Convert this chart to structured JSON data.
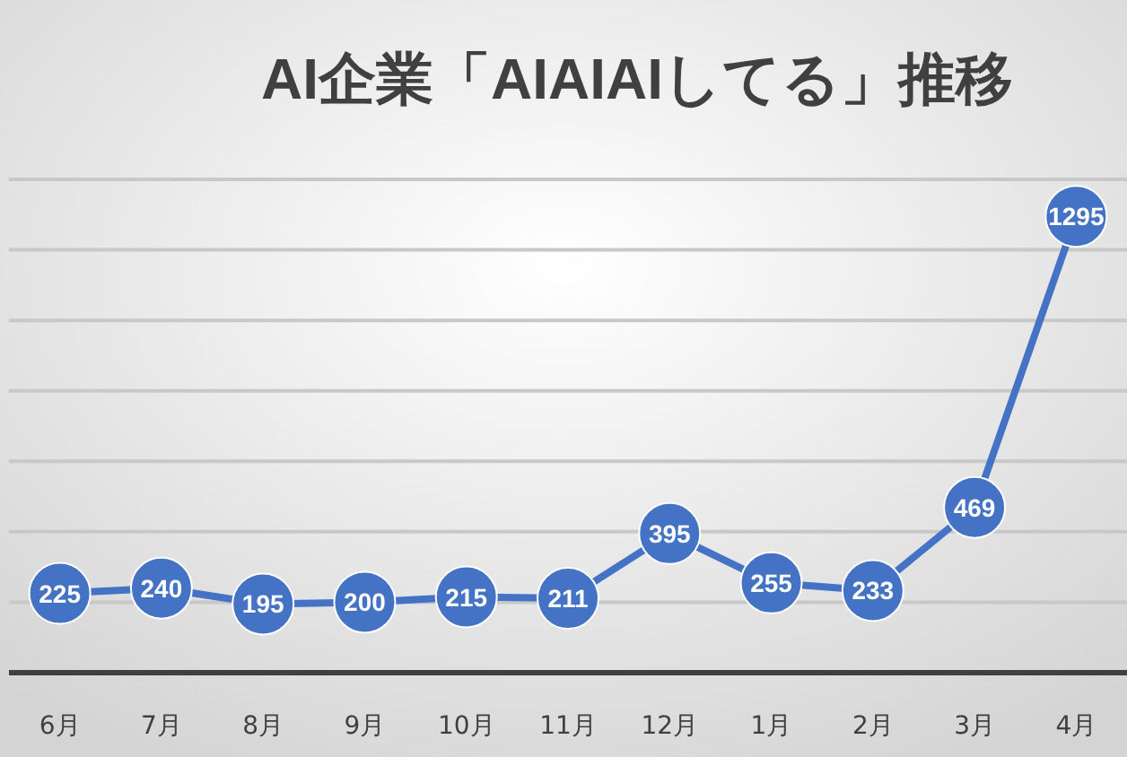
{
  "chart_data": {
    "type": "line",
    "title": "AI企業「AIAIAIしてる」推移",
    "categories": [
      "6月",
      "7月",
      "8月",
      "9月",
      "10月",
      "11月",
      "12月",
      "1月",
      "2月",
      "3月",
      "4月"
    ],
    "values": [
      225,
      240,
      195,
      200,
      215,
      211,
      395,
      255,
      233,
      469,
      1295
    ],
    "color": "#4472c4",
    "ylim": [
      0,
      1400
    ],
    "yticks": [
      {
        "value": 0,
        "label": null
      },
      {
        "value": 200,
        "label": null
      },
      {
        "value": 400,
        "label": null
      },
      {
        "value": 600,
        "label": null
      },
      {
        "value": 800,
        "label": null
      },
      {
        "value": 1000,
        "label": null
      },
      {
        "value": 1200,
        "label": null
      },
      {
        "value": 1400,
        "label": null
      }
    ],
    "grid": "y",
    "tick_labels": "x",
    "data_labels": true,
    "marker": "circle",
    "line_style": "solid"
  }
}
